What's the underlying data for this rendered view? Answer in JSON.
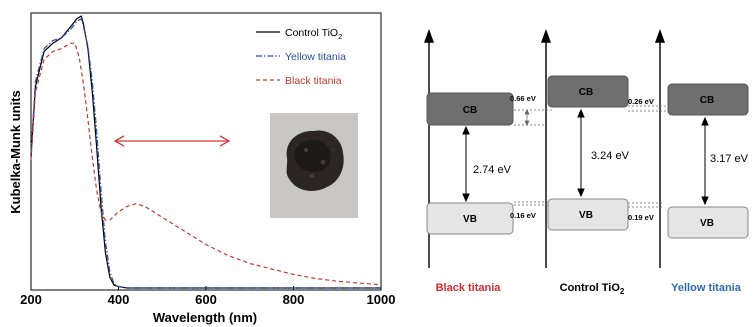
{
  "chart_data": [
    {
      "type": "line",
      "xlabel": "Wavelength (nm)",
      "ylabel": "Kubelka-Munk units",
      "xlim": [
        200,
        1000
      ],
      "x_ticks": [
        200,
        400,
        600,
        800,
        1000
      ],
      "x_tick_labels": [
        "200",
        "400",
        "600",
        "800",
        "1000"
      ],
      "legend_position": "top-right",
      "series": [
        {
          "name": "Control TiO2",
          "name_sub": "2",
          "name_main": "Control TiO",
          "color": "#000000",
          "style": "solid",
          "x": [
            200,
            210,
            230,
            250,
            270,
            290,
            305,
            315,
            320,
            330,
            340,
            350,
            360,
            370,
            380,
            390,
            400,
            420,
            450,
            500,
            600,
            700,
            800,
            900,
            1000
          ],
          "y": [
            0.48,
            0.74,
            0.87,
            0.9,
            0.92,
            0.96,
            0.99,
            1.0,
            0.97,
            0.88,
            0.72,
            0.52,
            0.3,
            0.13,
            0.04,
            0.01,
            0.005,
            0.0,
            0.0,
            0.0,
            0.0,
            0.0,
            0.0,
            0.0,
            0.0
          ]
        },
        {
          "name": "Yellow titania",
          "color": "#2f4ea8",
          "style": "dash-dot",
          "x": [
            200,
            210,
            230,
            250,
            270,
            290,
            305,
            315,
            320,
            330,
            340,
            350,
            360,
            370,
            380,
            390,
            400,
            420,
            450,
            500,
            600,
            700,
            800,
            900,
            1000
          ],
          "y": [
            0.5,
            0.76,
            0.88,
            0.91,
            0.92,
            0.95,
            0.98,
            0.99,
            0.96,
            0.89,
            0.76,
            0.58,
            0.36,
            0.17,
            0.06,
            0.015,
            0.005,
            0.0,
            0.0,
            0.0,
            0.0,
            0.0,
            0.0,
            0.0,
            0.0
          ]
        },
        {
          "name": "Black titania",
          "color": "#c0392b",
          "style": "dashed",
          "x": [
            200,
            210,
            230,
            250,
            270,
            290,
            300,
            310,
            320,
            330,
            340,
            350,
            360,
            370,
            380,
            400,
            420,
            440,
            460,
            480,
            500,
            550,
            600,
            650,
            700,
            750,
            800,
            850,
            900,
            950,
            1000
          ],
          "y": [
            0.47,
            0.72,
            0.84,
            0.87,
            0.88,
            0.9,
            0.9,
            0.85,
            0.75,
            0.62,
            0.48,
            0.36,
            0.28,
            0.25,
            0.25,
            0.28,
            0.3,
            0.31,
            0.3,
            0.28,
            0.26,
            0.21,
            0.16,
            0.12,
            0.09,
            0.07,
            0.05,
            0.035,
            0.025,
            0.018,
            0.012
          ]
        }
      ]
    },
    {
      "type": "diagram",
      "materials": [
        {
          "name": "Black titania",
          "color": "#d42a2a",
          "cb": "CB",
          "vb": "VB",
          "gap": "2.74 eV",
          "cb_offset": "0.66 eV",
          "vb_offset": "0.16 eV"
        },
        {
          "name": "Control TiO2",
          "name_main": "Control TiO",
          "name_sub": "2",
          "color": "#000000",
          "cb": "CB",
          "vb": "VB",
          "gap": "3.24 eV",
          "cb_offset": "0.26 eV",
          "vb_offset": "0.19 eV"
        },
        {
          "name": "Yellow titania",
          "color": "#2f6bb3",
          "cb": "CB",
          "vb": "VB",
          "gap": "3.17 eV"
        }
      ]
    }
  ]
}
